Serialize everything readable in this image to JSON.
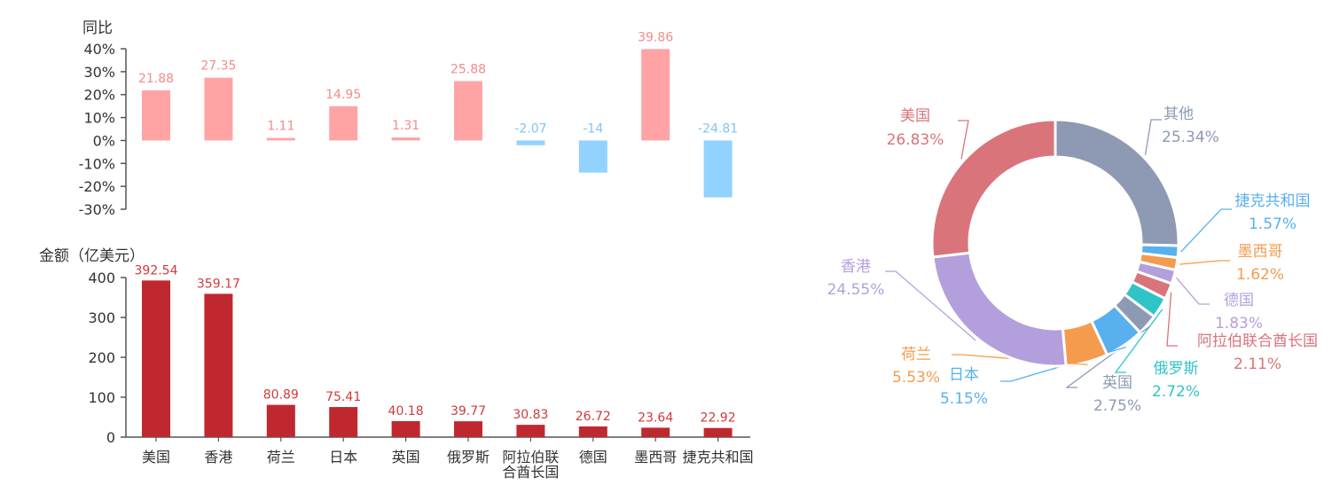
{
  "chart_data": [
    {
      "type": "bar",
      "ylabel": "同比",
      "categories": [
        "美国",
        "香港",
        "荷兰",
        "日本",
        "英国",
        "俄罗斯",
        "阿拉伯联合酋长国",
        "德国",
        "墨西哥",
        "捷克共和国"
      ],
      "category_labels": [
        [
          "美国"
        ],
        [
          "香港"
        ],
        [
          "荷兰"
        ],
        [
          "日本"
        ],
        [
          "英国"
        ],
        [
          "俄罗斯"
        ],
        [
          "阿拉伯联",
          "合酋长国"
        ],
        [
          "德国"
        ],
        [
          "墨西哥"
        ],
        [
          "捷克共和国"
        ]
      ],
      "values": [
        21.88,
        27.35,
        1.11,
        14.95,
        1.31,
        25.88,
        -2.07,
        -14,
        39.86,
        -24.81
      ],
      "value_labels": [
        "21.88",
        "27.35",
        "1.11",
        "14.95",
        "1.31",
        "25.88",
        "-2.07",
        "-14",
        "39.86",
        "-24.81"
      ],
      "ylim": [
        -30,
        40
      ],
      "yticks": [
        "-30%",
        "-20%",
        "-10%",
        "0%",
        "10%",
        "20%",
        "30%",
        "40%"
      ],
      "colors": {
        "positive": "#FFA3A4",
        "negative": "#92D2FF",
        "positive_label": "#F28C8C",
        "negative_label": "#7FC4F5"
      }
    },
    {
      "type": "bar",
      "ylabel": "金额（亿美元）",
      "categories": [
        "美国",
        "香港",
        "荷兰",
        "日本",
        "英国",
        "俄罗斯",
        "阿拉伯联合酋长国",
        "德国",
        "墨西哥",
        "捷克共和国"
      ],
      "category_labels": [
        [
          "美国"
        ],
        [
          "香港"
        ],
        [
          "荷兰"
        ],
        [
          "日本"
        ],
        [
          "英国"
        ],
        [
          "俄罗斯"
        ],
        [
          "阿拉伯联",
          "合酋长国"
        ],
        [
          "德国"
        ],
        [
          "墨西哥"
        ],
        [
          "捷克共和国"
        ]
      ],
      "values": [
        392.54,
        359.17,
        80.89,
        75.41,
        40.18,
        39.77,
        30.83,
        26.72,
        23.64,
        22.92
      ],
      "value_labels": [
        "392.54",
        "359.17",
        "80.89",
        "75.41",
        "40.18",
        "39.77",
        "30.83",
        "26.72",
        "23.64",
        "22.92"
      ],
      "ylim": [
        0,
        400
      ],
      "yticks": [
        "0",
        "100",
        "200",
        "300",
        "400"
      ],
      "colors": {
        "bar": "#C0282F",
        "label": "#D03A3A"
      }
    },
    {
      "type": "pie",
      "donut": true,
      "slices": [
        {
          "name": "其他",
          "value": 25.34,
          "label_value": "25.34%",
          "color": "#8E9AB4"
        },
        {
          "name": "捷克共和国",
          "value": 1.57,
          "label_value": "1.57%",
          "color": "#58B0EE"
        },
        {
          "name": "墨西哥",
          "value": 1.62,
          "label_value": "1.62%",
          "color": "#F59B4E"
        },
        {
          "name": "德国",
          "value": 1.83,
          "label_value": "1.83%",
          "color": "#B49FDD"
        },
        {
          "name": "阿拉伯联合酋长国",
          "value": 2.11,
          "label_value": "2.11%",
          "color": "#D9747A"
        },
        {
          "name": "俄罗斯",
          "value": 2.72,
          "label_value": "2.72%",
          "color": "#2FC5C8"
        },
        {
          "name": "英国",
          "value": 2.75,
          "label_value": "2.75%",
          "color": "#8E9AB4"
        },
        {
          "name": "日本",
          "value": 5.15,
          "label_value": "5.15%",
          "color": "#58B0EE"
        },
        {
          "name": "荷兰",
          "value": 5.53,
          "label_value": "5.53%",
          "color": "#F59B4E"
        },
        {
          "name": "香港",
          "value": 24.55,
          "label_value": "24.55%",
          "color": "#B49FDD"
        },
        {
          "name": "美国",
          "value": 26.83,
          "label_value": "26.83%",
          "color": "#D9747A"
        }
      ]
    }
  ]
}
